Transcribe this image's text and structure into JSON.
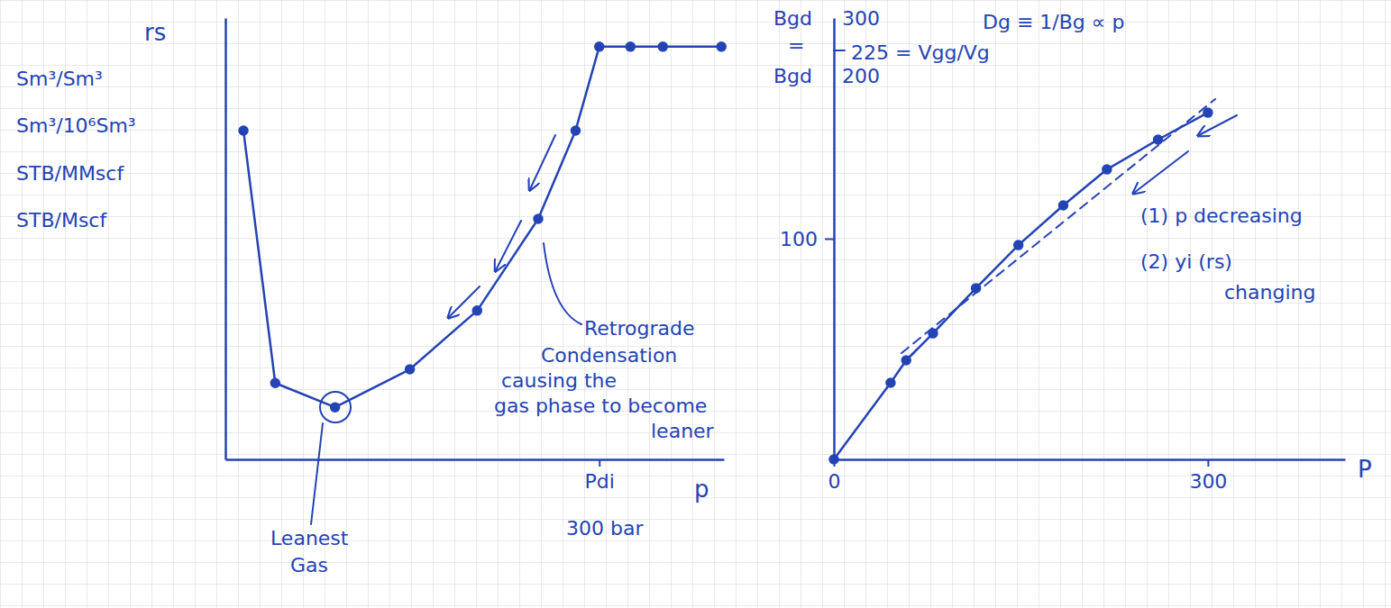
{
  "chart_data": [
    {
      "type": "line",
      "x": [
        14.5,
        40,
        88,
        148,
        202,
        251,
        281,
        300,
        325,
        351,
        398
      ],
      "values": [
        74.5,
        17.3,
        11.8,
        20.4,
        33.7,
        54.5,
        74.5,
        93.5,
        93.5,
        93.5,
        93.5
      ],
      "color": "#2443b5",
      "marker": "circle",
      "xlim": [
        0,
        400
      ],
      "ylim": [
        0,
        100
      ],
      "xticks": [
        {
          "value": 300,
          "label": "Pdi"
        }
      ],
      "yticks": [],
      "tick_labels": "x",
      "x_label": "p",
      "y_label": [
        "rs",
        "Sm³/Sm³",
        "Sm³/10⁶Sm³",
        "STB/MMscf",
        "STB/Mscf"
      ],
      "annotations": [
        [
          "Retrograde",
          "Condensation",
          "causing the",
          "gas phase to become",
          "leaner"
        ],
        [
          "Leanest",
          "Gas"
        ],
        [
          "300 bar"
        ]
      ]
    },
    {
      "type": "line",
      "x": [
        0,
        45.5,
        58,
        79.5,
        114,
        148,
        184,
        219,
        260,
        300
      ],
      "values": [
        0,
        34.7,
        44.9,
        57.1,
        77.6,
        97.1,
        115.1,
        131.4,
        144.9,
        157.1
      ],
      "color": "#2443b5",
      "marker": "circle",
      "xlim": [
        0,
        410
      ],
      "ylim": [
        0,
        200
      ],
      "xticks": [
        0,
        300
      ],
      "yticks": [
        100
      ],
      "tick_labels": true,
      "x_label": "P",
      "annotations": [
        [
          "Bgd",
          "300"
        ],
        [
          "="
        ],
        [
          "Bgd",
          "200"
        ],
        [
          "225 = Vgg/Vg"
        ],
        [
          "Dg ≡ 1/Bg ∝ p"
        ],
        [
          "(1) p decreasing"
        ],
        [
          "(2) yi (rs)",
          "changing"
        ]
      ]
    }
  ]
}
